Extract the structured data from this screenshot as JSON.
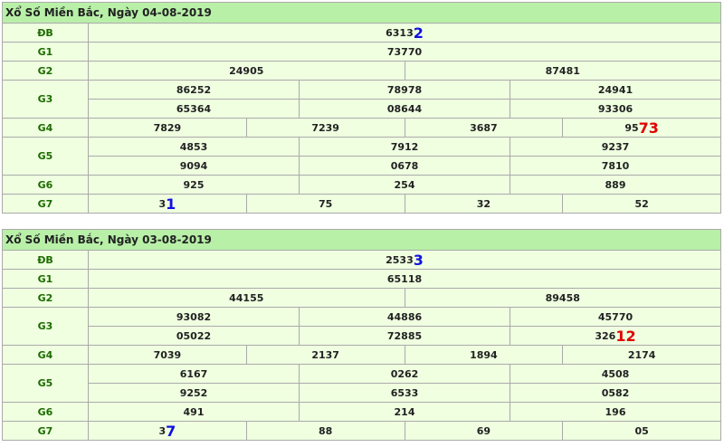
{
  "results": [
    {
      "title": "Xổ Số Miền Bắc, Ngày 04-08-2019",
      "prizes": [
        {
          "label": "ĐB",
          "rows": [
            [
              {
                "text": "6313",
                "hl": "2",
                "hl_color": "#1010e0"
              }
            ]
          ]
        },
        {
          "label": "G1",
          "rows": [
            [
              "73770"
            ]
          ]
        },
        {
          "label": "G2",
          "rows": [
            [
              "24905",
              "87481"
            ]
          ]
        },
        {
          "label": "G3",
          "rows": [
            [
              "86252",
              "78978",
              "24941"
            ],
            [
              "65364",
              "08644",
              "93306"
            ]
          ]
        },
        {
          "label": "G4",
          "rows": [
            [
              "7829",
              "7239",
              "3687",
              {
                "text": "95",
                "hl": "73",
                "hl_color": "#e00000"
              }
            ]
          ]
        },
        {
          "label": "G5",
          "rows": [
            [
              "4853",
              "7912",
              "9237"
            ],
            [
              "9094",
              "0678",
              "7810"
            ]
          ]
        },
        {
          "label": "G6",
          "rows": [
            [
              "925",
              "254",
              "889"
            ]
          ]
        },
        {
          "label": "G7",
          "rows": [
            [
              {
                "text": "3",
                "hl": "1",
                "hl_color": "#1010e0"
              },
              "75",
              "32",
              "52"
            ]
          ]
        }
      ]
    },
    {
      "title": "Xổ Số Miền Bắc, Ngày 03-08-2019",
      "prizes": [
        {
          "label": "ĐB",
          "rows": [
            [
              {
                "text": "2533",
                "hl": "3",
                "hl_color": "#1010e0"
              }
            ]
          ]
        },
        {
          "label": "G1",
          "rows": [
            [
              "65118"
            ]
          ]
        },
        {
          "label": "G2",
          "rows": [
            [
              "44155",
              "89458"
            ]
          ]
        },
        {
          "label": "G3",
          "rows": [
            [
              "93082",
              "44886",
              "45770"
            ],
            [
              "05022",
              "72885",
              {
                "text": "326",
                "hl": "12",
                "hl_color": "#e00000"
              }
            ]
          ]
        },
        {
          "label": "G4",
          "rows": [
            [
              "7039",
              "2137",
              "1894",
              "2174"
            ]
          ]
        },
        {
          "label": "G5",
          "rows": [
            [
              "6167",
              "0262",
              "4508"
            ],
            [
              "9252",
              "6533",
              "0582"
            ]
          ]
        },
        {
          "label": "G6",
          "rows": [
            [
              "491",
              "214",
              "196"
            ]
          ]
        },
        {
          "label": "G7",
          "rows": [
            [
              {
                "text": "3",
                "hl": "7",
                "hl_color": "#1010e0"
              },
              "88",
              "69",
              "05"
            ]
          ]
        }
      ]
    }
  ]
}
